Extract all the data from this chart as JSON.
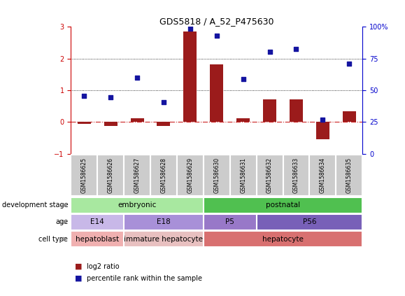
{
  "title": "GDS5818 / A_52_P475630",
  "samples": [
    "GSM1586625",
    "GSM1586626",
    "GSM1586627",
    "GSM1586628",
    "GSM1586629",
    "GSM1586630",
    "GSM1586631",
    "GSM1586632",
    "GSM1586633",
    "GSM1586634",
    "GSM1586635"
  ],
  "log2_ratio": [
    -0.05,
    -0.12,
    0.12,
    -0.13,
    2.85,
    1.82,
    0.12,
    0.72,
    0.72,
    -0.55,
    0.33
  ],
  "percentile_left_scale": [
    0.83,
    0.78,
    1.4,
    0.63,
    2.93,
    2.72,
    1.35,
    2.22,
    2.3,
    0.08,
    1.83
  ],
  "bar_color": "#9B1B1B",
  "dot_color": "#1414A0",
  "hline0_color": "#CC2222",
  "ylim_left": [
    -1,
    3
  ],
  "yticks_left": [
    -1,
    0,
    1,
    2,
    3
  ],
  "yticks_right": [
    0,
    25,
    50,
    75,
    100
  ],
  "development_stage": [
    {
      "label": "embryonic",
      "start": 0,
      "end": 5,
      "color": "#A8E8A0"
    },
    {
      "label": "postnatal",
      "start": 5,
      "end": 11,
      "color": "#50C050"
    }
  ],
  "age": [
    {
      "label": "E14",
      "start": 0,
      "end": 2,
      "color": "#C8B8E8"
    },
    {
      "label": "E18",
      "start": 2,
      "end": 5,
      "color": "#A890D8"
    },
    {
      "label": "P5",
      "start": 5,
      "end": 7,
      "color": "#9878C8"
    },
    {
      "label": "P56",
      "start": 7,
      "end": 11,
      "color": "#7860B8"
    }
  ],
  "cell_type": [
    {
      "label": "hepatoblast",
      "start": 0,
      "end": 2,
      "color": "#F0B0B0"
    },
    {
      "label": "immature hepatocyte",
      "start": 2,
      "end": 5,
      "color": "#E8C0C0"
    },
    {
      "label": "hepatocyte",
      "start": 5,
      "end": 11,
      "color": "#D87070"
    }
  ],
  "row_labels": [
    "development stage",
    "age",
    "cell type"
  ],
  "legend_bar_color": "#9B1B1B",
  "legend_dot_color": "#1414A0",
  "legend_bar_label": "log2 ratio",
  "legend_dot_label": "percentile rank within the sample"
}
